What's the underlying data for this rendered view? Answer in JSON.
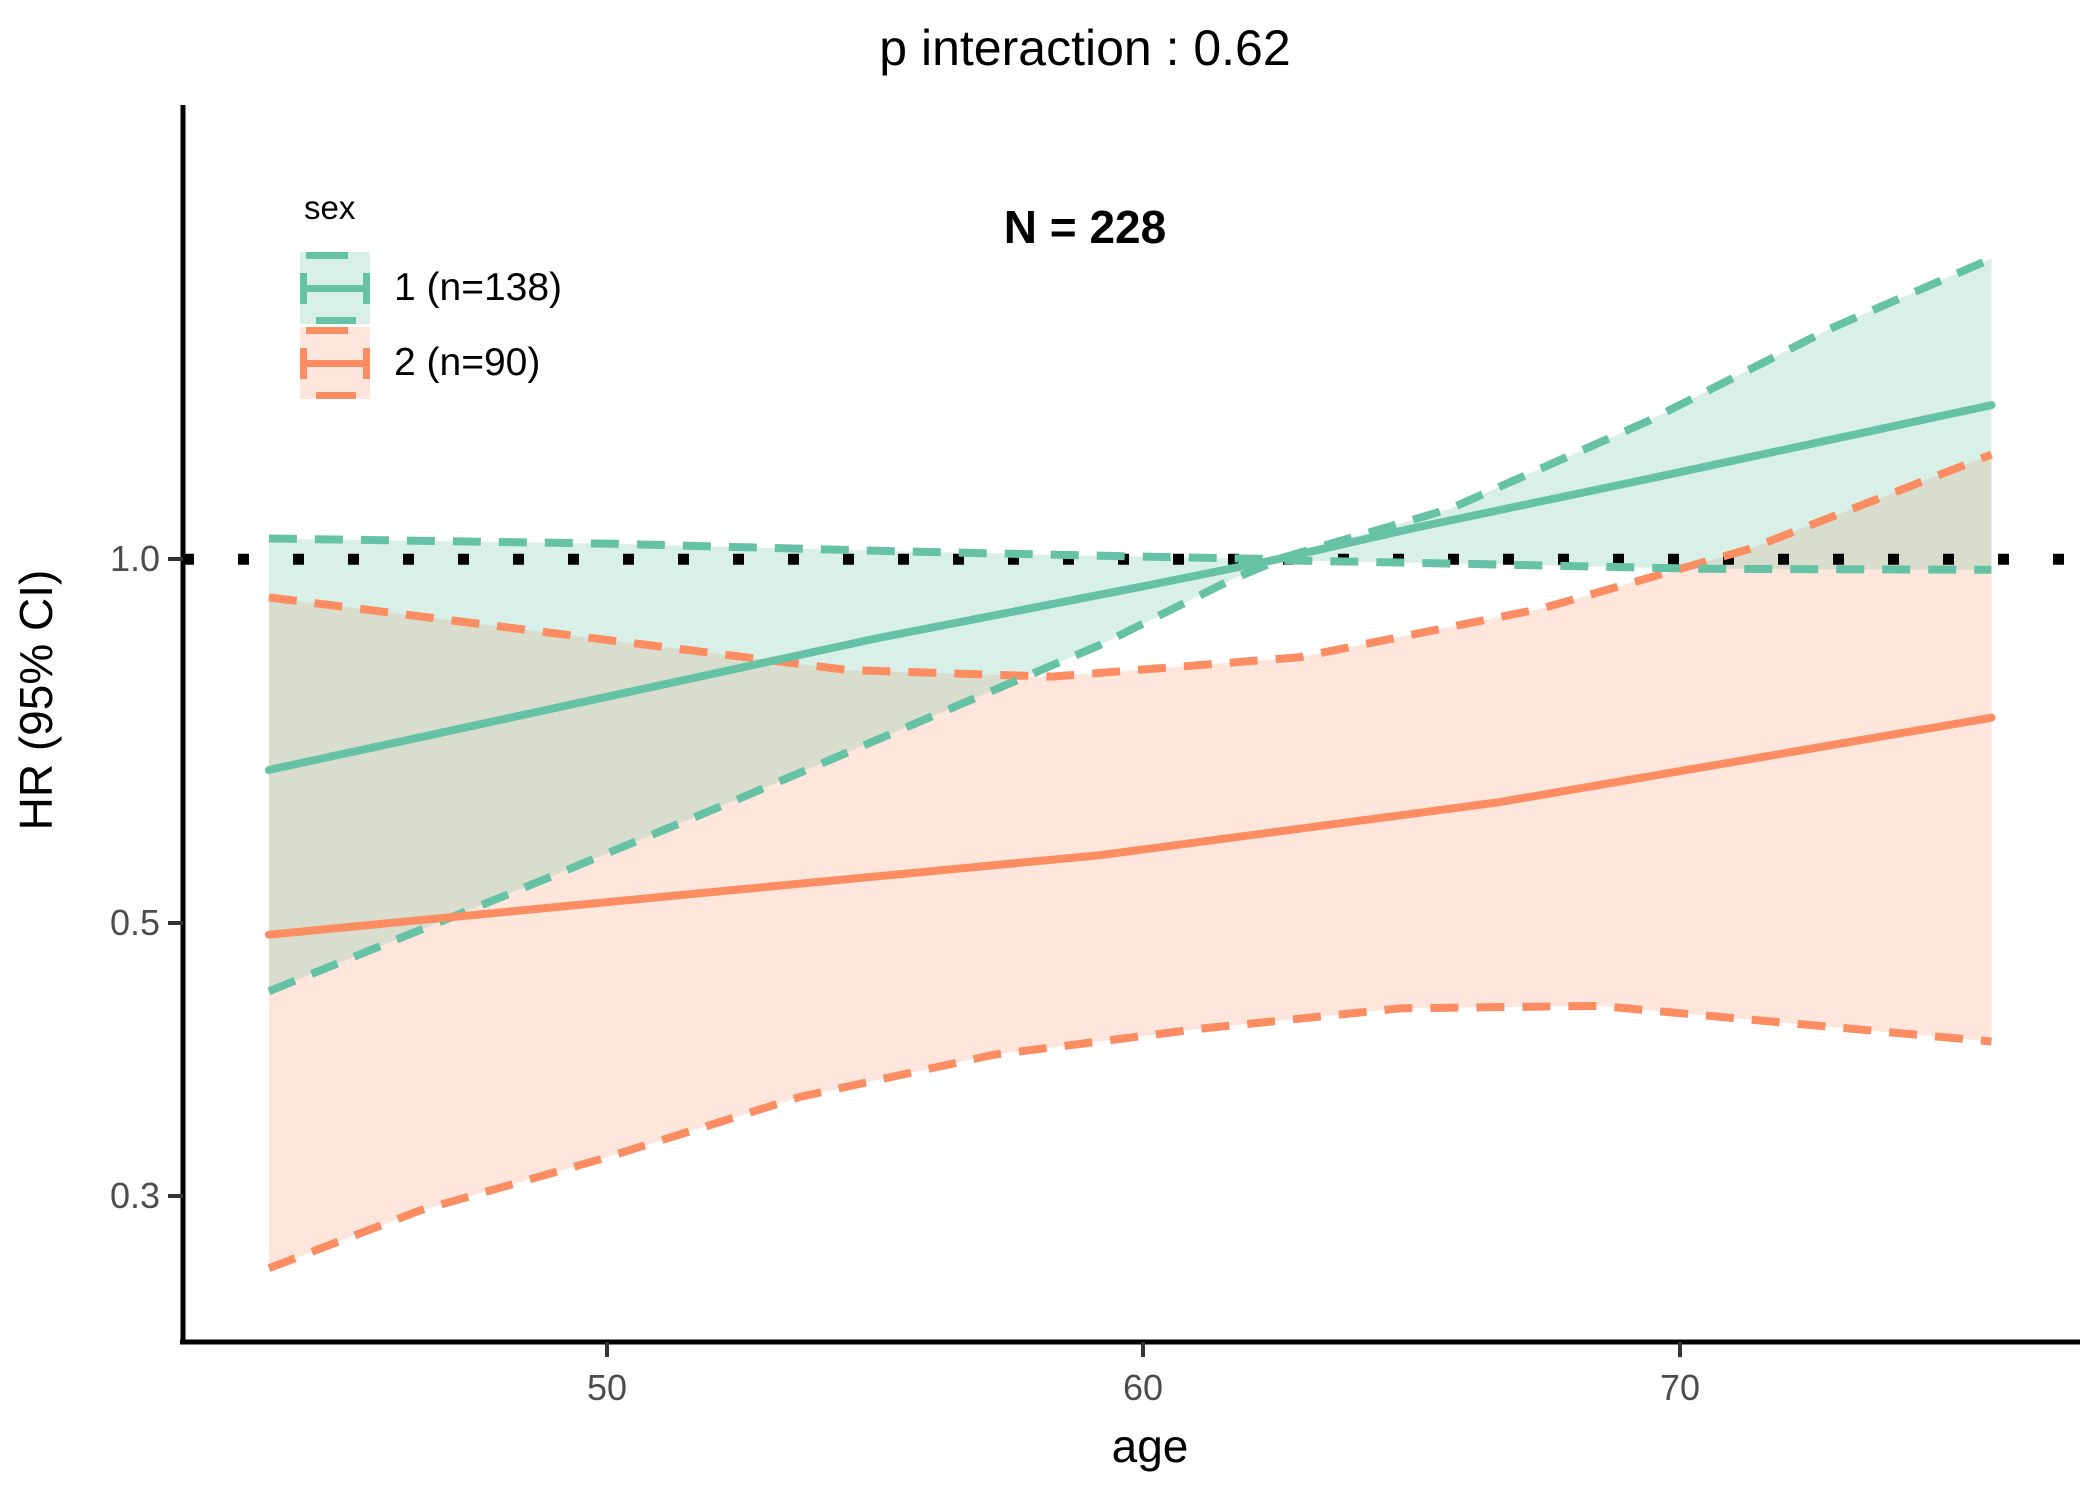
{
  "chart_data": {
    "type": "line",
    "title": "p interaction : 0.62",
    "annotation": "N = 228",
    "xlabel": "age",
    "ylabel": "HR (95% CI)",
    "x_ticks": [
      {
        "value": 50,
        "label": "50"
      },
      {
        "value": 60,
        "label": "60"
      },
      {
        "value": 70,
        "label": "70"
      }
    ],
    "y_ticks": [
      {
        "value": 1.0,
        "label": "1.0"
      },
      {
        "value": 0.5,
        "label": "0.5"
      },
      {
        "value": 0.3,
        "label": "0.3"
      }
    ],
    "xlim": [
      42.1,
      77.45
    ],
    "ylim": [
      0.226,
      2.37
    ],
    "log_y": true,
    "grid": false,
    "reference_line": 1.0,
    "reference_style": "dotted-black",
    "legend": {
      "title": "sex",
      "position": "top-left-inside"
    },
    "groups": [
      {
        "name": "1",
        "label": "1 (n=138)",
        "n": 138,
        "color": "#66C2A5",
        "fill_alpha": 0.25,
        "estimate": [
          [
            43.7,
            0.67
          ],
          [
            50,
            0.77
          ],
          [
            55,
            0.86
          ],
          [
            60,
            0.95
          ],
          [
            62.5,
            1.0
          ],
          [
            65,
            1.06
          ],
          [
            70,
            1.18
          ],
          [
            75.8,
            1.34
          ]
        ],
        "upper": [
          [
            43.7,
            1.04
          ],
          [
            50,
            1.03
          ],
          [
            55.5,
            1.015
          ],
          [
            60,
            1.005
          ],
          [
            62.5,
            1.0
          ],
          [
            65.7,
            1.1
          ],
          [
            69.4,
            1.3
          ],
          [
            72.8,
            1.55
          ],
          [
            75.8,
            1.77
          ]
        ],
        "lower": [
          [
            43.7,
            0.44
          ],
          [
            48.2,
            0.53
          ],
          [
            52.3,
            0.63
          ],
          [
            56,
            0.74
          ],
          [
            59.2,
            0.85
          ],
          [
            61.6,
            0.96
          ],
          [
            62.5,
            0.998
          ],
          [
            66.6,
            0.99
          ],
          [
            70.4,
            0.982
          ],
          [
            75.8,
            0.98
          ]
        ]
      },
      {
        "name": "2",
        "label": "2 (n=90)",
        "n": 90,
        "color": "#FC8D62",
        "fill_alpha": 0.22,
        "estimate": [
          [
            43.7,
            0.49
          ],
          [
            51.7,
            0.53
          ],
          [
            59.2,
            0.57
          ],
          [
            66.6,
            0.63
          ],
          [
            75.8,
            0.74
          ]
        ],
        "upper": [
          [
            43.7,
            0.93
          ],
          [
            48.9,
            0.87
          ],
          [
            54.5,
            0.81
          ],
          [
            58.3,
            0.8
          ],
          [
            62.9,
            0.83
          ],
          [
            67.4,
            0.91
          ],
          [
            71.3,
            1.02
          ],
          [
            75.8,
            1.22
          ]
        ],
        "lower": [
          [
            43.7,
            0.26
          ],
          [
            46.5,
            0.29
          ],
          [
            49.9,
            0.32
          ],
          [
            53.6,
            0.36
          ],
          [
            57.2,
            0.39
          ],
          [
            61.1,
            0.41
          ],
          [
            64.8,
            0.426
          ],
          [
            68.5,
            0.428
          ],
          [
            75.8,
            0.4
          ]
        ]
      }
    ]
  }
}
